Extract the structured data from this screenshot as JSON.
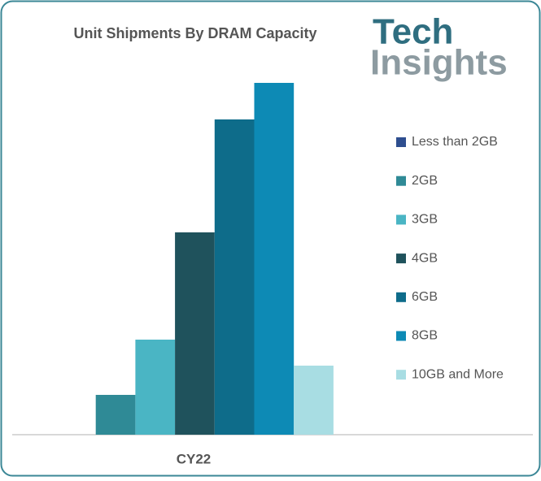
{
  "logo": {
    "line1": "Tech",
    "line2": "Insights"
  },
  "chart_data": {
    "type": "bar",
    "title": "Unit Shipments By DRAM Capacity",
    "categories": [
      "CY22"
    ],
    "series": [
      {
        "name": "Less than 2GB",
        "color": "#2e4e8f",
        "values": [
          0
        ]
      },
      {
        "name": "2GB",
        "color": "#2f8a96",
        "values": [
          49
        ]
      },
      {
        "name": "3GB",
        "color": "#4ab5c4",
        "values": [
          117
        ]
      },
      {
        "name": "4GB",
        "color": "#1f525c",
        "values": [
          249
        ]
      },
      {
        "name": "6GB",
        "color": "#0e6c8a",
        "values": [
          388
        ]
      },
      {
        "name": "8GB",
        "color": "#0d8ab5",
        "values": [
          433
        ]
      },
      {
        "name": "10GB and More",
        "color": "#a8dde3",
        "values": [
          85
        ]
      }
    ],
    "ylim": [
      0,
      433
    ],
    "legend": "right"
  }
}
